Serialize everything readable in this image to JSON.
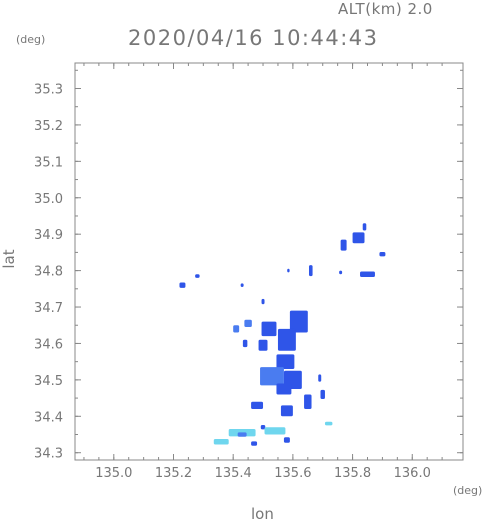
{
  "header": {
    "altitude": "ALT(km) 2.0",
    "timestamp": "2020/04/16 10:44:43"
  },
  "chart_data": {
    "type": "heatmap",
    "title": "2020/04/16 10:44:43",
    "xlabel": "lon",
    "ylabel": "lat",
    "x_unit": "(deg)",
    "y_unit": "(deg)",
    "xlim": [
      134.87,
      136.17
    ],
    "ylim": [
      34.28,
      35.37
    ],
    "x_ticks": [
      "135.0",
      "135.2",
      "135.4",
      "135.6",
      "135.8",
      "136.0"
    ],
    "y_ticks": [
      "34.3",
      "34.4",
      "34.5",
      "34.6",
      "34.7",
      "34.8",
      "34.9",
      "35.0",
      "35.1",
      "35.2",
      "35.3"
    ],
    "grid": false,
    "colors": {
      "strong": "#2f55e8",
      "moderate": "#4a7cf0",
      "weak": "#6fd6ee",
      "frame": "#888888"
    },
    "echo_cells": [
      {
        "lon": 135.84,
        "lat": 34.92,
        "w": 0.012,
        "h": 0.02,
        "level": "strong"
      },
      {
        "lon": 135.82,
        "lat": 34.89,
        "w": 0.04,
        "h": 0.03,
        "level": "strong"
      },
      {
        "lon": 135.77,
        "lat": 34.87,
        "w": 0.02,
        "h": 0.03,
        "level": "strong"
      },
      {
        "lon": 135.9,
        "lat": 34.845,
        "w": 0.02,
        "h": 0.012,
        "level": "strong"
      },
      {
        "lon": 135.85,
        "lat": 34.79,
        "w": 0.05,
        "h": 0.015,
        "level": "strong"
      },
      {
        "lon": 135.76,
        "lat": 34.795,
        "w": 0.01,
        "h": 0.01,
        "level": "strong"
      },
      {
        "lon": 135.66,
        "lat": 34.8,
        "w": 0.012,
        "h": 0.03,
        "level": "strong"
      },
      {
        "lon": 135.585,
        "lat": 34.8,
        "w": 0.008,
        "h": 0.01,
        "level": "strong"
      },
      {
        "lon": 135.28,
        "lat": 34.785,
        "w": 0.015,
        "h": 0.01,
        "level": "strong"
      },
      {
        "lon": 135.23,
        "lat": 34.76,
        "w": 0.02,
        "h": 0.015,
        "level": "strong"
      },
      {
        "lon": 135.43,
        "lat": 34.76,
        "w": 0.01,
        "h": 0.01,
        "level": "strong"
      },
      {
        "lon": 135.5,
        "lat": 34.715,
        "w": 0.01,
        "h": 0.015,
        "level": "strong"
      },
      {
        "lon": 135.45,
        "lat": 34.655,
        "w": 0.025,
        "h": 0.02,
        "level": "moderate"
      },
      {
        "lon": 135.41,
        "lat": 34.64,
        "w": 0.02,
        "h": 0.02,
        "level": "moderate"
      },
      {
        "lon": 135.52,
        "lat": 34.64,
        "w": 0.05,
        "h": 0.04,
        "level": "strong"
      },
      {
        "lon": 135.62,
        "lat": 34.66,
        "w": 0.06,
        "h": 0.06,
        "level": "strong"
      },
      {
        "lon": 135.58,
        "lat": 34.61,
        "w": 0.06,
        "h": 0.06,
        "level": "strong"
      },
      {
        "lon": 135.5,
        "lat": 34.595,
        "w": 0.03,
        "h": 0.03,
        "level": "strong"
      },
      {
        "lon": 135.44,
        "lat": 34.6,
        "w": 0.015,
        "h": 0.02,
        "level": "strong"
      },
      {
        "lon": 135.575,
        "lat": 34.55,
        "w": 0.06,
        "h": 0.04,
        "level": "strong"
      },
      {
        "lon": 135.53,
        "lat": 34.51,
        "w": 0.08,
        "h": 0.05,
        "level": "moderate"
      },
      {
        "lon": 135.6,
        "lat": 34.5,
        "w": 0.06,
        "h": 0.05,
        "level": "strong"
      },
      {
        "lon": 135.57,
        "lat": 34.475,
        "w": 0.05,
        "h": 0.03,
        "level": "strong"
      },
      {
        "lon": 135.65,
        "lat": 34.44,
        "w": 0.025,
        "h": 0.04,
        "level": "strong"
      },
      {
        "lon": 135.7,
        "lat": 34.46,
        "w": 0.015,
        "h": 0.025,
        "level": "strong"
      },
      {
        "lon": 135.69,
        "lat": 34.505,
        "w": 0.01,
        "h": 0.02,
        "level": "strong"
      },
      {
        "lon": 135.48,
        "lat": 34.43,
        "w": 0.04,
        "h": 0.02,
        "level": "strong"
      },
      {
        "lon": 135.58,
        "lat": 34.415,
        "w": 0.04,
        "h": 0.03,
        "level": "strong"
      },
      {
        "lon": 135.72,
        "lat": 34.38,
        "w": 0.025,
        "h": 0.01,
        "level": "weak"
      },
      {
        "lon": 135.5,
        "lat": 34.37,
        "w": 0.015,
        "h": 0.012,
        "level": "strong"
      },
      {
        "lon": 135.43,
        "lat": 34.355,
        "w": 0.09,
        "h": 0.02,
        "level": "weak"
      },
      {
        "lon": 135.54,
        "lat": 34.36,
        "w": 0.07,
        "h": 0.02,
        "level": "weak"
      },
      {
        "lon": 135.36,
        "lat": 34.33,
        "w": 0.05,
        "h": 0.015,
        "level": "weak"
      },
      {
        "lon": 135.43,
        "lat": 34.35,
        "w": 0.03,
        "h": 0.012,
        "level": "moderate"
      },
      {
        "lon": 135.47,
        "lat": 34.325,
        "w": 0.02,
        "h": 0.012,
        "level": "strong"
      },
      {
        "lon": 135.58,
        "lat": 34.335,
        "w": 0.02,
        "h": 0.015,
        "level": "strong"
      }
    ]
  }
}
